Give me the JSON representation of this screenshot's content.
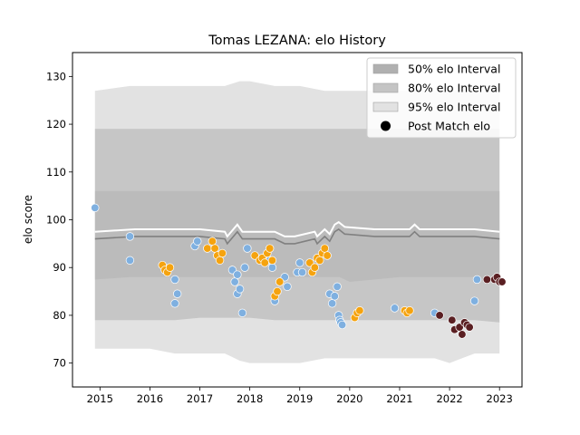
{
  "chart_data": {
    "type": "scatter",
    "title": "Tomas LEZANA: elo History",
    "xlabel": "",
    "ylabel": "elo score",
    "xlim": [
      2014.45,
      2023.45
    ],
    "ylim": [
      65,
      135
    ],
    "x_ticks": [
      2015,
      2016,
      2017,
      2018,
      2019,
      2020,
      2021,
      2022,
      2023
    ],
    "y_ticks": [
      70,
      80,
      90,
      100,
      110,
      120,
      130
    ],
    "legend_position": "top-right",
    "legend": [
      {
        "label": "50% elo Interval",
        "kind": "band",
        "color": "#b0b0b0"
      },
      {
        "label": "80% elo Interval",
        "kind": "band",
        "color": "#c4c4c4"
      },
      {
        "label": "95% elo Interval",
        "kind": "band",
        "color": "#e2e2e2"
      },
      {
        "label": "Post Match elo",
        "kind": "marker",
        "color": "#000000"
      }
    ],
    "bands": {
      "x": [
        2014.9,
        2015.6,
        2016.0,
        2016.5,
        2017.0,
        2017.5,
        2017.8,
        2018.0,
        2018.5,
        2019.0,
        2019.5,
        2019.8,
        2020.0,
        2020.5,
        2021.0,
        2021.3,
        2021.7,
        2022.0,
        2022.5,
        2023.0
      ],
      "p50_low": [
        87.5,
        88,
        88,
        88,
        88,
        88,
        88,
        88,
        88,
        88,
        88,
        88,
        87,
        87.5,
        88,
        88,
        88,
        88,
        88,
        87
      ],
      "p50_high": [
        106,
        106,
        106,
        106,
        106,
        106,
        106,
        106,
        106,
        106,
        106,
        106,
        106,
        106,
        106,
        106,
        106,
        106,
        106,
        106
      ],
      "p80_low": [
        79,
        79,
        79,
        79,
        79.5,
        79.5,
        79.5,
        79.5,
        79,
        79,
        79,
        79,
        79,
        79,
        79,
        79,
        79,
        79,
        79,
        78.5
      ],
      "p80_high": [
        119,
        119,
        119,
        119,
        119,
        119,
        119,
        119,
        119,
        119,
        119,
        119,
        119,
        119,
        119,
        119,
        119,
        119,
        119,
        119
      ],
      "p95_low": [
        73,
        73,
        73,
        72,
        72,
        72,
        70.5,
        70,
        70,
        70,
        71,
        71,
        71,
        71,
        71,
        71,
        71,
        70,
        72,
        72
      ],
      "p95_high": [
        127,
        128,
        128,
        128,
        128,
        128,
        129,
        129,
        128,
        128,
        127,
        127,
        127,
        127,
        127,
        127,
        127,
        127,
        127,
        127
      ]
    },
    "mean_line": {
      "color": "#808080",
      "x": [
        2014.9,
        2015.7,
        2016.0,
        2017.0,
        2017.5,
        2017.55,
        2017.75,
        2017.85,
        2018.0,
        2018.5,
        2018.7,
        2018.9,
        2019.3,
        2019.35,
        2019.5,
        2019.6,
        2019.7,
        2019.78,
        2019.9,
        2020.5,
        2021.0,
        2021.2,
        2021.3,
        2021.4,
        2021.7,
        2022.0,
        2022.5,
        2023.0
      ],
      "y": [
        96.0,
        96.5,
        96.5,
        96.5,
        96.0,
        95.0,
        97.5,
        96.0,
        96.0,
        96.0,
        95.0,
        95.0,
        96.0,
        95.0,
        96.5,
        95.5,
        97.5,
        98.0,
        97.0,
        96.5,
        96.5,
        96.5,
        97.5,
        96.5,
        96.5,
        96.5,
        96.5,
        96.0
      ]
    },
    "white_line": {
      "color": "#ffffff",
      "x": [
        2014.9,
        2015.7,
        2016.0,
        2017.0,
        2017.5,
        2017.55,
        2017.75,
        2017.85,
        2018.0,
        2018.5,
        2018.7,
        2018.9,
        2019.3,
        2019.35,
        2019.5,
        2019.6,
        2019.7,
        2019.78,
        2019.9,
        2020.5,
        2021.0,
        2021.2,
        2021.3,
        2021.4,
        2021.7,
        2022.0,
        2022.5,
        2023.0
      ],
      "y": [
        97.5,
        98.0,
        98.0,
        98.0,
        97.5,
        96.5,
        99.0,
        97.5,
        97.5,
        97.5,
        96.5,
        96.5,
        97.5,
        96.5,
        98.0,
        97.0,
        99.0,
        99.5,
        98.5,
        98.0,
        98.0,
        98.0,
        99.0,
        98.0,
        98.0,
        98.0,
        98.0,
        97.5
      ]
    },
    "series": [
      {
        "color": "#7fb0e0",
        "x": [
          2014.9,
          2015.6,
          2015.6,
          2016.5,
          2016.55,
          2016.5,
          2016.9,
          2016.95,
          2017.65,
          2017.7,
          2017.75,
          2017.75,
          2017.8,
          2017.85,
          2017.9,
          2017.95,
          2018.4,
          2018.45,
          2018.5,
          2018.7,
          2018.75,
          2018.95,
          2019.0,
          2019.05,
          2019.6,
          2019.65,
          2019.7,
          2019.75,
          2019.78,
          2019.8,
          2019.82,
          2019.85,
          2020.9,
          2021.7,
          2022.5,
          2022.55
        ],
        "y": [
          102.5,
          96.5,
          91.5,
          87.5,
          84.5,
          82.5,
          94.5,
          95.5,
          89.5,
          87.0,
          88.5,
          84.5,
          85.5,
          80.5,
          90.0,
          94.0,
          91.5,
          90.0,
          83.0,
          88.0,
          86.0,
          89.0,
          91.0,
          89.0,
          84.5,
          82.5,
          84.0,
          86.0,
          80.0,
          79.0,
          78.5,
          78.0,
          81.5,
          80.5,
          83.0,
          87.5
        ]
      },
      {
        "color": "#f5a30f",
        "x": [
          2016.25,
          2016.3,
          2016.35,
          2016.4,
          2017.15,
          2017.25,
          2017.3,
          2017.35,
          2017.4,
          2017.45,
          2018.1,
          2018.2,
          2018.25,
          2018.3,
          2018.35,
          2018.4,
          2018.45,
          2018.5,
          2018.55,
          2018.6,
          2019.2,
          2019.25,
          2019.3,
          2019.35,
          2019.4,
          2019.45,
          2019.5,
          2019.55,
          2020.1,
          2020.15,
          2020.2,
          2021.1,
          2021.15,
          2021.2
        ],
        "y": [
          90.5,
          89.5,
          89.0,
          90.0,
          94.0,
          95.5,
          94.0,
          92.5,
          91.5,
          93.0,
          92.5,
          91.5,
          92.0,
          91.0,
          93.0,
          94.0,
          91.5,
          84.0,
          85.0,
          87.0,
          91.0,
          89.0,
          90.0,
          92.0,
          91.5,
          93.0,
          94.0,
          92.5,
          79.5,
          80.5,
          81.0,
          81.0,
          80.5,
          81.0
        ]
      },
      {
        "color": "#5a1f22",
        "x": [
          2021.8,
          2022.05,
          2022.1,
          2022.2,
          2022.25,
          2022.3,
          2022.35,
          2022.4,
          2022.75,
          2022.9,
          2022.95,
          2023.0,
          2023.05
        ],
        "y": [
          80.0,
          79.0,
          77.0,
          77.5,
          76.0,
          78.5,
          78.0,
          77.5,
          87.5,
          87.5,
          88.0,
          87.0,
          87.0
        ]
      }
    ]
  }
}
